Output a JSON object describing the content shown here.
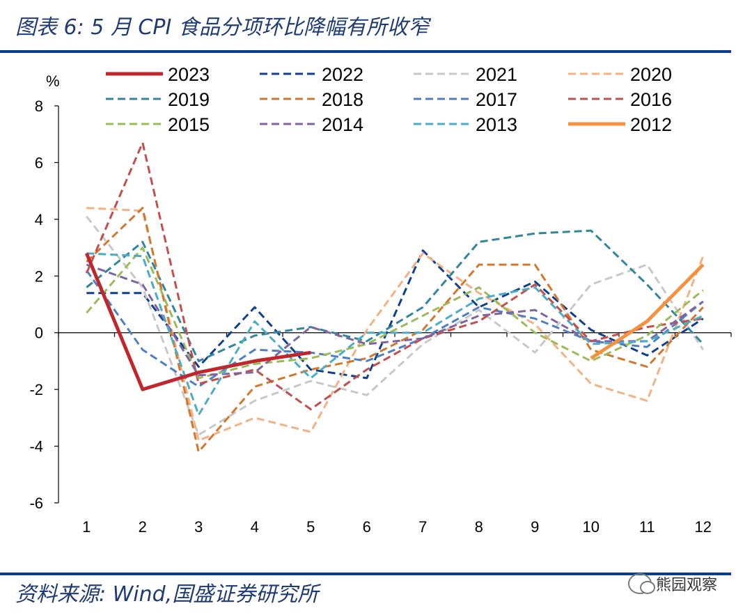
{
  "header": {
    "title": "图表 6:  5 月 CPI 食品分项环比降幅有所收窄"
  },
  "footer": {
    "source": "资料来源:  Wind,国盛证券研究所",
    "watermark": "熊园观察"
  },
  "chart_data": {
    "type": "line",
    "ylabel": "%",
    "ylim": [
      -6,
      8
    ],
    "yticks": [
      -6,
      -4,
      -2,
      0,
      2,
      4,
      6,
      8
    ],
    "x": [
      1,
      2,
      3,
      4,
      5,
      6,
      7,
      8,
      9,
      10,
      11,
      12
    ],
    "legend_position": "top",
    "series": [
      {
        "name": "2023",
        "color": "#c0272d",
        "dashed": false,
        "width": 5,
        "values": [
          2.8,
          -2.0,
          -1.4,
          -1.0,
          -0.7,
          null,
          null,
          null,
          null,
          null,
          null,
          null
        ]
      },
      {
        "name": "2022",
        "color": "#0f3f8f",
        "dashed": true,
        "width": 3,
        "values": [
          1.4,
          1.4,
          -1.2,
          0.9,
          -1.3,
          -1.6,
          2.9,
          0.9,
          1.8,
          0.1,
          -0.8,
          0.5
        ]
      },
      {
        "name": "2021",
        "color": "#c8c8c8",
        "dashed": true,
        "width": 3,
        "values": [
          4.1,
          1.6,
          -3.6,
          -2.4,
          -1.7,
          -2.2,
          -0.4,
          0.8,
          -0.7,
          1.7,
          2.4,
          -0.6
        ]
      },
      {
        "name": "2020",
        "color": "#f4b183",
        "dashed": true,
        "width": 3,
        "values": [
          4.4,
          4.3,
          -3.8,
          -3.0,
          -3.5,
          0.1,
          2.8,
          1.4,
          0.3,
          -1.8,
          -2.4,
          2.7
        ]
      },
      {
        "name": "2019",
        "color": "#31859c",
        "dashed": true,
        "width": 3,
        "values": [
          1.6,
          3.2,
          -1.0,
          -0.1,
          0.2,
          -0.3,
          0.9,
          3.2,
          3.5,
          3.6,
          1.7,
          -0.4
        ]
      },
      {
        "name": "2018",
        "color": "#d2782e",
        "dashed": true,
        "width": 3,
        "values": [
          2.5,
          4.4,
          -4.2,
          -1.9,
          -1.3,
          -0.9,
          0.1,
          2.4,
          2.4,
          -0.6,
          -1.2,
          0.9
        ]
      },
      {
        "name": "2017",
        "color": "#4f7fc0",
        "dashed": true,
        "width": 3,
        "values": [
          2.2,
          -0.6,
          -1.9,
          -0.6,
          -0.7,
          -1.0,
          -0.2,
          0.9,
          0.5,
          -0.3,
          -0.5,
          1.1
        ]
      },
      {
        "name": "2016",
        "color": "#c0504d",
        "dashed": true,
        "width": 3,
        "values": [
          2.1,
          6.7,
          -1.8,
          -1.3,
          -2.7,
          -1.3,
          -0.2,
          0.4,
          1.7,
          -0.3,
          0.2,
          0.5
        ]
      },
      {
        "name": "2015",
        "color": "#9bbb59",
        "dashed": true,
        "width": 3,
        "values": [
          0.7,
          3.0,
          -1.6,
          -1.1,
          -0.9,
          -0.4,
          0.6,
          1.6,
          0.0,
          -1.0,
          -0.1,
          1.5
        ]
      },
      {
        "name": "2014",
        "color": "#7f64a2",
        "dashed": true,
        "width": 3,
        "values": [
          2.4,
          1.7,
          -1.5,
          -1.4,
          0.2,
          -0.4,
          -0.2,
          0.6,
          0.8,
          -0.3,
          -0.3,
          1.1
        ]
      },
      {
        "name": "2013",
        "color": "#4bacc6",
        "dashed": true,
        "width": 3,
        "values": [
          2.8,
          2.7,
          -2.9,
          0.4,
          -1.6,
          0.0,
          0.0,
          1.2,
          1.6,
          -0.4,
          -0.3,
          0.6
        ]
      },
      {
        "name": "2012",
        "color": "#f4923f",
        "dashed": false,
        "width": 5,
        "values": [
          null,
          null,
          null,
          null,
          null,
          null,
          null,
          null,
          null,
          -0.9,
          0.4,
          2.4
        ]
      }
    ]
  }
}
